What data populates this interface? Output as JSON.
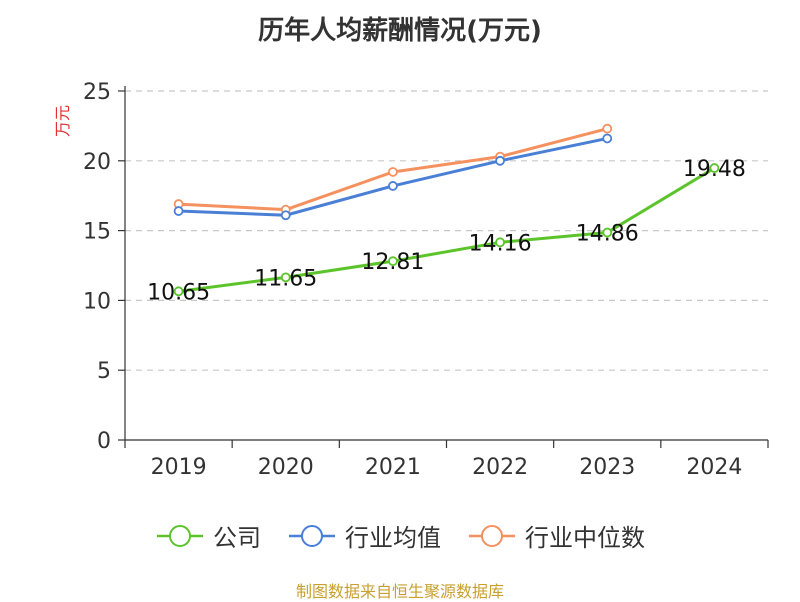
{
  "chart_data": {
    "type": "line",
    "title": "历年人均薪酬情况(万元)",
    "ylabel": "万元",
    "xlabel": "",
    "categories": [
      "2019",
      "2020",
      "2021",
      "2022",
      "2023",
      "2024"
    ],
    "ylim": [
      0,
      25
    ],
    "yticks": [
      0,
      5,
      10,
      15,
      20,
      25
    ],
    "grid": true,
    "legend_position": "bottom",
    "series": [
      {
        "name": "公司",
        "color": "#5cc42b",
        "values": [
          10.65,
          11.65,
          12.81,
          14.16,
          14.86,
          19.48
        ],
        "labels": [
          "10.65",
          "11.65",
          "12.81",
          "14.16",
          "14.86",
          "19.48"
        ]
      },
      {
        "name": "行业均值",
        "color": "#4a7fd6",
        "values": [
          16.4,
          16.1,
          18.2,
          20.0,
          21.6,
          null
        ]
      },
      {
        "name": "行业中位数",
        "color": "#f5915f",
        "values": [
          16.9,
          16.5,
          19.2,
          20.3,
          22.3,
          null
        ]
      }
    ]
  },
  "colors": {
    "ylabel": "#e03030",
    "source": "#c8a030",
    "grid": "#c8c8c8",
    "axis": "#333333"
  },
  "source": "制图数据来自恒生聚源数据库"
}
